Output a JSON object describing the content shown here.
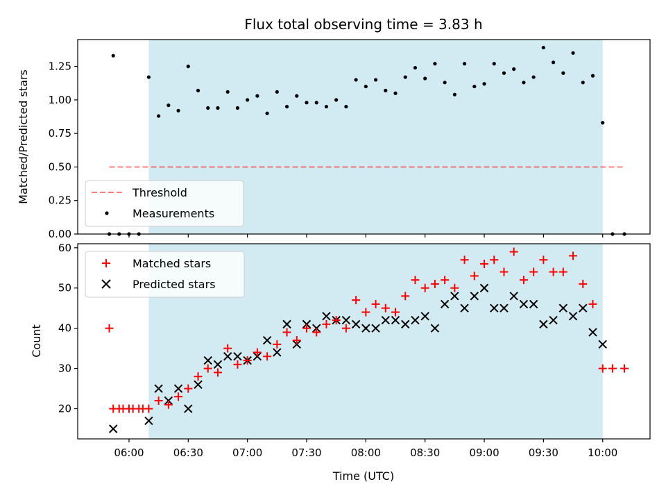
{
  "title": "Flux total observing time = 3.83 h",
  "colors": {
    "shade": "#add8e6",
    "matched": "#ff0000",
    "predicted": "#000000",
    "threshold": "#ff0000",
    "measurements": "#000000"
  },
  "chart_data": [
    {
      "type": "scatter",
      "ylabel": "Matched/Predicted stars",
      "xlim": [
        "05:34",
        "10:24"
      ],
      "ylim": [
        0,
        1.45
      ],
      "yticks": [
        "0.00",
        "0.25",
        "0.50",
        "0.75",
        "1.00",
        "1.25"
      ],
      "observing_window": [
        "06:10",
        "10:00"
      ],
      "threshold": {
        "name": "Threshold",
        "value": 0.5,
        "x_range": [
          "05:50",
          "10:11"
        ]
      },
      "legend": {
        "position": "lower-left",
        "labels": [
          "Threshold",
          "Measurements"
        ]
      },
      "series": [
        {
          "name": "Measurements",
          "x": [
            "05:50",
            "05:55",
            "06:00",
            "06:05",
            "06:10",
            "06:15",
            "06:20",
            "06:25",
            "06:30",
            "06:35",
            "06:40",
            "06:45",
            "06:50",
            "06:55",
            "07:00",
            "07:05",
            "07:10",
            "07:15",
            "07:20",
            "07:25",
            "07:30",
            "07:35",
            "07:40",
            "07:45",
            "07:50",
            "07:55",
            "08:00",
            "08:05",
            "08:10",
            "08:15",
            "08:20",
            "08:25",
            "08:30",
            "08:35",
            "08:40",
            "08:45",
            "08:50",
            "08:55",
            "09:00",
            "09:05",
            "09:10",
            "09:15",
            "09:20",
            "09:25",
            "09:30",
            "09:35",
            "09:40",
            "09:45",
            "09:50",
            "09:55",
            "10:00",
            "10:05",
            "10:11"
          ],
          "values": [
            0.0,
            0.0,
            0.0,
            0.0,
            1.17,
            0.88,
            0.96,
            0.92,
            1.25,
            1.07,
            0.94,
            0.94,
            1.06,
            0.94,
            1.0,
            1.03,
            0.9,
            1.06,
            0.95,
            1.03,
            0.98,
            0.98,
            0.95,
            1.0,
            0.95,
            1.15,
            1.1,
            1.15,
            1.07,
            1.05,
            1.17,
            1.24,
            1.16,
            1.27,
            1.13,
            1.04,
            1.27,
            1.1,
            1.12,
            1.27,
            1.2,
            1.23,
            1.13,
            1.17,
            1.39,
            1.28,
            1.2,
            1.35,
            1.13,
            1.18,
            0.83,
            0.0,
            0.0
          ]
        },
        {
          "name": "Measurements-outlier",
          "x": [
            "05:52"
          ],
          "values": [
            1.33
          ]
        }
      ]
    },
    {
      "type": "scatter",
      "xlabel": "Time (UTC)",
      "ylabel": "Count",
      "xlim": [
        "05:34",
        "10:24"
      ],
      "ylim": [
        12.5,
        61
      ],
      "yticks": [
        "20",
        "30",
        "40",
        "50",
        "60"
      ],
      "xticks": [
        "06:00",
        "06:30",
        "07:00",
        "07:30",
        "08:00",
        "08:30",
        "09:00",
        "09:30",
        "10:00"
      ],
      "observing_window": [
        "06:10",
        "10:00"
      ],
      "legend": {
        "position": "upper-left",
        "labels": [
          "Matched stars",
          "Predicted stars"
        ]
      },
      "series": [
        {
          "name": "Matched stars",
          "x": [
            "05:50",
            "05:52",
            "05:55",
            "05:57",
            "06:00",
            "06:02",
            "06:05",
            "06:07",
            "06:10",
            "06:15",
            "06:20",
            "06:25",
            "06:30",
            "06:35",
            "06:40",
            "06:45",
            "06:50",
            "06:55",
            "07:00",
            "07:05",
            "07:10",
            "07:15",
            "07:20",
            "07:25",
            "07:30",
            "07:35",
            "07:40",
            "07:45",
            "07:50",
            "07:55",
            "08:00",
            "08:05",
            "08:10",
            "08:15",
            "08:20",
            "08:25",
            "08:30",
            "08:35",
            "08:40",
            "08:45",
            "08:50",
            "08:55",
            "09:00",
            "09:05",
            "09:10",
            "09:15",
            "09:20",
            "09:25",
            "09:30",
            "09:35",
            "09:40",
            "09:45",
            "09:50",
            "09:55",
            "10:00",
            "10:05",
            "10:11"
          ],
          "values": [
            40,
            20,
            20,
            20,
            20,
            20,
            20,
            20,
            20,
            22,
            21,
            23,
            25,
            28,
            30,
            29,
            35,
            31,
            32,
            34,
            33,
            36,
            39,
            37,
            40,
            39,
            41,
            42,
            40,
            47,
            44,
            46,
            45,
            44,
            48,
            52,
            50,
            51,
            52,
            50,
            57,
            53,
            56,
            57,
            54,
            59,
            52,
            54,
            57,
            54,
            54,
            58,
            51,
            46,
            30,
            30,
            30
          ]
        },
        {
          "name": "Predicted stars",
          "x": [
            "05:52",
            "06:10",
            "06:15",
            "06:20",
            "06:25",
            "06:30",
            "06:35",
            "06:40",
            "06:45",
            "06:50",
            "06:55",
            "07:00",
            "07:05",
            "07:10",
            "07:15",
            "07:20",
            "07:25",
            "07:30",
            "07:35",
            "07:40",
            "07:45",
            "07:50",
            "07:55",
            "08:00",
            "08:05",
            "08:10",
            "08:15",
            "08:20",
            "08:25",
            "08:30",
            "08:35",
            "08:40",
            "08:45",
            "08:50",
            "08:55",
            "09:00",
            "09:05",
            "09:10",
            "09:15",
            "09:20",
            "09:25",
            "09:30",
            "09:35",
            "09:40",
            "09:45",
            "09:50",
            "09:55",
            "10:00"
          ],
          "values": [
            15,
            17,
            25,
            22,
            25,
            20,
            26,
            32,
            31,
            33,
            33,
            32,
            33,
            37,
            34,
            41,
            36,
            41,
            40,
            43,
            42,
            42,
            41,
            40,
            40,
            42,
            42,
            41,
            42,
            43,
            40,
            46,
            48,
            45,
            48,
            50,
            45,
            45,
            48,
            46,
            46,
            41,
            42,
            45,
            43,
            45,
            39,
            36
          ]
        }
      ]
    }
  ]
}
